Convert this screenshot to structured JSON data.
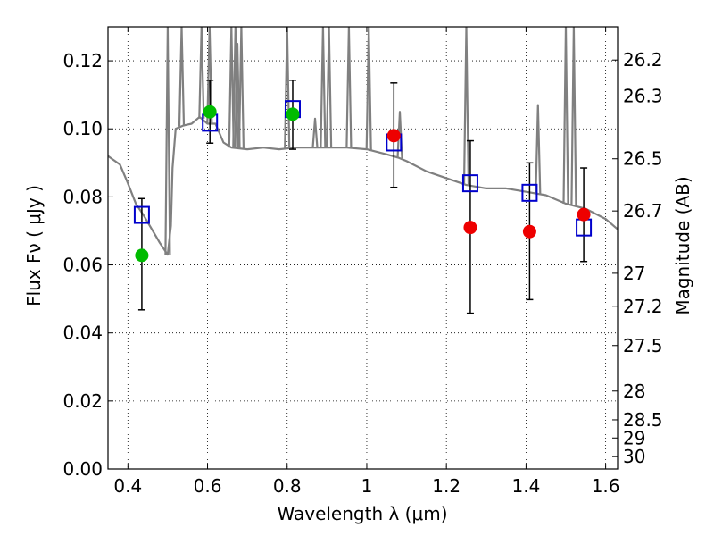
{
  "chart_data": {
    "type": "scatter",
    "xlabel": "Wavelength  λ (μm)",
    "ylabel": "Flux  Fν  ( μJy )",
    "ylabel_right": "Magnitude (AB)",
    "xlim": [
      0.35,
      1.63
    ],
    "ylim": [
      0.0,
      0.13
    ],
    "grid": true,
    "x_ticks": [
      0.4,
      0.6,
      0.8,
      1.0,
      1.2,
      1.4,
      1.6
    ],
    "x_tick_labels": [
      "0.4",
      "0.6",
      "0.8",
      "1",
      "1.2",
      "1.4",
      "1.6"
    ],
    "y_ticks": [
      0.0,
      0.02,
      0.04,
      0.06,
      0.08,
      0.1,
      0.12
    ],
    "y_tick_labels": [
      "0.00",
      "0.02",
      "0.04",
      "0.06",
      "0.08",
      "0.10",
      "0.12"
    ],
    "mag_ticks": [
      "26.2",
      "26.3",
      "26.5",
      "26.7",
      "27",
      "27.2",
      "27.5",
      "28",
      "28.5",
      "29",
      "30"
    ],
    "mag_zero_point": 23.9,
    "series": [
      {
        "name": "Observed (optical)",
        "marker": "circle",
        "color": "#00bb00",
        "x": [
          0.435,
          0.606,
          0.814
        ],
        "y": [
          0.0628,
          0.105,
          0.1043
        ]
      },
      {
        "name": "Observed (near-IR)",
        "marker": "circle",
        "color": "#ee0000",
        "x": [
          1.068,
          1.26,
          1.409,
          1.545
        ],
        "y": [
          0.098,
          0.071,
          0.0698,
          0.0748
        ]
      },
      {
        "name": "Model photometry",
        "marker": "open-square",
        "color": "#0000cc",
        "x": [
          0.435,
          0.606,
          0.814,
          1.068,
          1.26,
          1.409,
          1.545
        ],
        "y": [
          0.0747,
          0.1018,
          0.1058,
          0.096,
          0.084,
          0.0812,
          0.071
        ]
      },
      {
        "name": "Error bars",
        "marker": "errorbar",
        "color": "#000000",
        "x": [
          0.435,
          0.606,
          0.814,
          1.068,
          1.26,
          1.409,
          1.545
        ],
        "ylow": [
          0.0468,
          0.0958,
          0.094,
          0.0828,
          0.0458,
          0.0498,
          0.061
        ],
        "yhigh": [
          0.0795,
          0.1143,
          0.1143,
          0.1135,
          0.0965,
          0.09,
          0.0885
        ]
      },
      {
        "name": "Model spectrum",
        "marker": "line",
        "color": "#808080",
        "x": [
          0.35,
          0.38,
          0.4,
          0.42,
          0.44,
          0.46,
          0.48,
          0.5,
          0.508,
          0.512,
          0.52,
          0.54,
          0.56,
          0.58,
          0.6,
          0.62,
          0.64,
          0.66,
          0.7,
          0.74,
          0.78,
          0.82,
          0.86,
          0.9,
          0.95,
          1.0,
          1.05,
          1.08,
          1.1,
          1.15,
          1.2,
          1.25,
          1.3,
          1.35,
          1.4,
          1.45,
          1.5,
          1.55,
          1.6,
          1.63
        ],
        "y": [
          0.092,
          0.0895,
          0.084,
          0.078,
          0.0745,
          0.0705,
          0.0665,
          0.063,
          0.0715,
          0.0885,
          0.1,
          0.101,
          0.1015,
          0.1035,
          0.1015,
          0.1015,
          0.096,
          0.0945,
          0.094,
          0.0945,
          0.094,
          0.0945,
          0.0945,
          0.0945,
          0.0945,
          0.094,
          0.0925,
          0.0915,
          0.0905,
          0.0875,
          0.0855,
          0.0835,
          0.0825,
          0.0825,
          0.0815,
          0.0805,
          0.078,
          0.0765,
          0.0735,
          0.0705
        ]
      },
      {
        "name": "Emission lines",
        "marker": "spikes",
        "color": "#808080",
        "x": [
          0.5,
          0.535,
          0.585,
          0.605,
          0.66,
          0.67,
          0.675,
          0.685,
          0.8,
          0.87,
          0.89,
          0.905,
          0.955,
          1.005,
          1.083,
          1.25,
          1.43,
          1.5,
          1.52
        ],
        "peak": [
          0.13,
          0.13,
          0.13,
          0.13,
          0.13,
          0.13,
          0.125,
          0.13,
          0.13,
          0.103,
          0.13,
          0.13,
          0.13,
          0.13,
          0.105,
          0.13,
          0.107,
          0.13,
          0.13
        ]
      }
    ]
  }
}
